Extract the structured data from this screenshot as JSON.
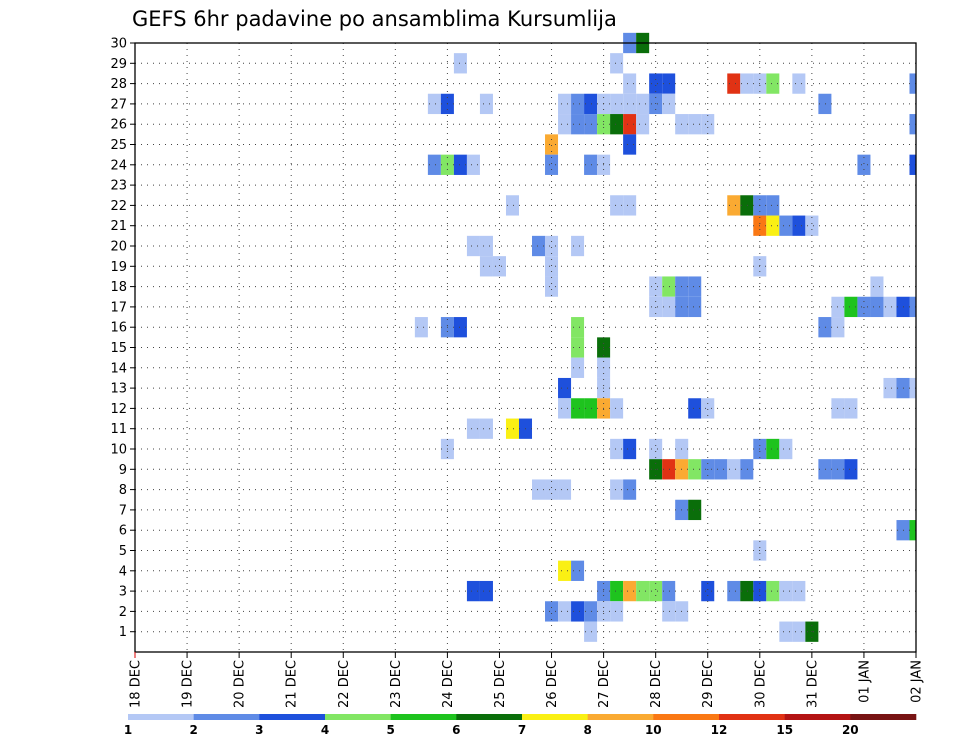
{
  "chart_data": {
    "type": "heatmap",
    "title": "GEFS 6hr padavine po ansamblima Kursumlija",
    "xlabel": "",
    "ylabel": "",
    "x_ticks": [
      "18 DEC",
      "19 DEC",
      "20 DEC",
      "21 DEC",
      "22 DEC",
      "23 DEC",
      "24 DEC",
      "25 DEC",
      "26 DEC",
      "27 DEC",
      "28 DEC",
      "29 DEC",
      "30 DEC",
      "31 DEC",
      "01 JAN",
      "02 JAN"
    ],
    "y_ticks": [
      "1",
      "2",
      "3",
      "4",
      "5",
      "6",
      "7",
      "8",
      "9",
      "10",
      "11",
      "12",
      "13",
      "14",
      "15",
      "16",
      "17",
      "18",
      "19",
      "20",
      "21",
      "22",
      "23",
      "24",
      "25",
      "26",
      "27",
      "28",
      "29",
      "30"
    ],
    "x_unit": "6-hour step from 18 DEC 00z (0..60)",
    "y_unit": "ensemble member (1..30)",
    "colorbar": {
      "labels": [
        "1",
        "2",
        "3",
        "4",
        "5",
        "6",
        "7",
        "8",
        "10",
        "12",
        "15",
        "20"
      ],
      "colors": [
        "#b4c8f5",
        "#5f8be6",
        "#1e50dc",
        "#82e664",
        "#1ec31e",
        "#0a6e0a",
        "#faf014",
        "#faaa32",
        "#fa7814",
        "#e13214",
        "#b41414",
        "#781414"
      ]
    },
    "cells": [
      [
        38,
        30,
        1
      ],
      [
        39,
        30,
        5
      ],
      [
        25,
        29,
        0
      ],
      [
        37,
        29,
        0
      ],
      [
        38,
        28,
        0
      ],
      [
        40,
        28,
        2
      ],
      [
        41,
        28,
        2
      ],
      [
        46,
        28,
        9
      ],
      [
        47,
        28,
        0
      ],
      [
        48,
        28,
        0
      ],
      [
        49,
        28,
        3
      ],
      [
        51,
        28,
        0
      ],
      [
        60,
        28,
        1
      ],
      [
        23,
        27,
        0
      ],
      [
        24,
        27,
        2
      ],
      [
        27,
        27,
        0
      ],
      [
        33,
        27,
        0
      ],
      [
        34,
        27,
        1
      ],
      [
        35,
        27,
        2
      ],
      [
        36,
        27,
        0
      ],
      [
        37,
        27,
        0
      ],
      [
        38,
        27,
        0
      ],
      [
        39,
        27,
        0
      ],
      [
        40,
        27,
        1
      ],
      [
        41,
        27,
        0
      ],
      [
        53,
        27,
        1
      ],
      [
        33,
        26,
        0
      ],
      [
        34,
        26,
        1
      ],
      [
        35,
        26,
        1
      ],
      [
        36,
        26,
        3
      ],
      [
        37,
        26,
        5
      ],
      [
        38,
        26,
        9
      ],
      [
        39,
        26,
        0
      ],
      [
        42,
        26,
        0
      ],
      [
        43,
        26,
        0
      ],
      [
        44,
        26,
        0
      ],
      [
        60,
        26,
        1
      ],
      [
        32,
        25,
        7
      ],
      [
        38,
        25,
        2
      ],
      [
        23,
        24,
        1
      ],
      [
        24,
        24,
        3
      ],
      [
        25,
        24,
        2
      ],
      [
        26,
        24,
        0
      ],
      [
        32,
        24,
        1
      ],
      [
        35,
        24,
        1
      ],
      [
        36,
        24,
        0
      ],
      [
        56,
        24,
        1
      ],
      [
        60,
        24,
        2
      ],
      [
        29,
        22,
        0
      ],
      [
        37,
        22,
        0
      ],
      [
        38,
        22,
        0
      ],
      [
        46,
        22,
        7
      ],
      [
        47,
        22,
        5
      ],
      [
        48,
        22,
        1
      ],
      [
        49,
        22,
        1
      ],
      [
        48,
        21,
        8
      ],
      [
        49,
        21,
        6
      ],
      [
        50,
        21,
        1
      ],
      [
        51,
        21,
        2
      ],
      [
        52,
        21,
        0
      ],
      [
        26,
        20,
        0
      ],
      [
        27,
        20,
        0
      ],
      [
        31,
        20,
        1
      ],
      [
        32,
        20,
        0
      ],
      [
        34,
        20,
        0
      ],
      [
        27,
        19,
        0
      ],
      [
        28,
        19,
        0
      ],
      [
        32,
        19,
        0
      ],
      [
        48,
        19,
        0
      ],
      [
        32,
        18,
        0
      ],
      [
        40,
        18,
        0
      ],
      [
        41,
        18,
        3
      ],
      [
        42,
        18,
        1
      ],
      [
        43,
        18,
        1
      ],
      [
        57,
        18,
        0
      ],
      [
        40,
        17,
        0
      ],
      [
        41,
        17,
        0
      ],
      [
        42,
        17,
        1
      ],
      [
        43,
        17,
        1
      ],
      [
        54,
        17,
        0
      ],
      [
        55,
        17,
        4
      ],
      [
        56,
        17,
        1
      ],
      [
        57,
        17,
        1
      ],
      [
        58,
        17,
        0
      ],
      [
        59,
        17,
        2
      ],
      [
        60,
        17,
        1
      ],
      [
        22,
        16,
        0
      ],
      [
        24,
        16,
        1
      ],
      [
        25,
        16,
        2
      ],
      [
        34,
        16,
        3
      ],
      [
        53,
        16,
        1
      ],
      [
        54,
        16,
        0
      ],
      [
        34,
        15,
        3
      ],
      [
        36,
        15,
        5
      ],
      [
        34,
        14,
        0
      ],
      [
        36,
        14,
        0
      ],
      [
        33,
        13,
        2
      ],
      [
        36,
        13,
        0
      ],
      [
        58,
        13,
        0
      ],
      [
        59,
        13,
        1
      ],
      [
        60,
        13,
        0
      ],
      [
        33,
        12,
        0
      ],
      [
        34,
        12,
        4
      ],
      [
        35,
        12,
        4
      ],
      [
        36,
        12,
        7
      ],
      [
        37,
        12,
        0
      ],
      [
        43,
        12,
        2
      ],
      [
        44,
        12,
        0
      ],
      [
        54,
        12,
        0
      ],
      [
        55,
        12,
        0
      ],
      [
        26,
        11,
        0
      ],
      [
        27,
        11,
        0
      ],
      [
        29,
        11,
        6
      ],
      [
        30,
        11,
        2
      ],
      [
        24,
        10,
        0
      ],
      [
        37,
        10,
        0
      ],
      [
        38,
        10,
        2
      ],
      [
        40,
        10,
        0
      ],
      [
        42,
        10,
        0
      ],
      [
        48,
        10,
        1
      ],
      [
        49,
        10,
        4
      ],
      [
        50,
        10,
        0
      ],
      [
        40,
        9,
        5
      ],
      [
        41,
        9,
        9
      ],
      [
        42,
        9,
        7
      ],
      [
        43,
        9,
        3
      ],
      [
        44,
        9,
        1
      ],
      [
        45,
        9,
        1
      ],
      [
        46,
        9,
        0
      ],
      [
        47,
        9,
        1
      ],
      [
        53,
        9,
        1
      ],
      [
        54,
        9,
        1
      ],
      [
        55,
        9,
        2
      ],
      [
        31,
        8,
        0
      ],
      [
        32,
        8,
        0
      ],
      [
        33,
        8,
        0
      ],
      [
        37,
        8,
        0
      ],
      [
        38,
        8,
        1
      ],
      [
        42,
        7,
        1
      ],
      [
        43,
        7,
        5
      ],
      [
        59,
        6,
        1
      ],
      [
        60,
        6,
        4
      ],
      [
        48,
        5,
        0
      ],
      [
        33,
        4,
        6
      ],
      [
        34,
        4,
        1
      ],
      [
        26,
        3,
        2
      ],
      [
        27,
        3,
        2
      ],
      [
        36,
        3,
        1
      ],
      [
        37,
        3,
        4
      ],
      [
        38,
        3,
        7
      ],
      [
        39,
        3,
        3
      ],
      [
        40,
        3,
        3
      ],
      [
        41,
        3,
        1
      ],
      [
        44,
        3,
        2
      ],
      [
        46,
        3,
        1
      ],
      [
        47,
        3,
        5
      ],
      [
        48,
        3,
        2
      ],
      [
        49,
        3,
        3
      ],
      [
        50,
        3,
        0
      ],
      [
        51,
        3,
        0
      ],
      [
        32,
        2,
        1
      ],
      [
        33,
        2,
        0
      ],
      [
        34,
        2,
        2
      ],
      [
        35,
        2,
        1
      ],
      [
        36,
        2,
        0
      ],
      [
        37,
        2,
        0
      ],
      [
        41,
        2,
        0
      ],
      [
        42,
        2,
        0
      ],
      [
        35,
        1,
        0
      ],
      [
        50,
        1,
        0
      ],
      [
        51,
        1,
        0
      ],
      [
        52,
        1,
        5
      ]
    ]
  }
}
